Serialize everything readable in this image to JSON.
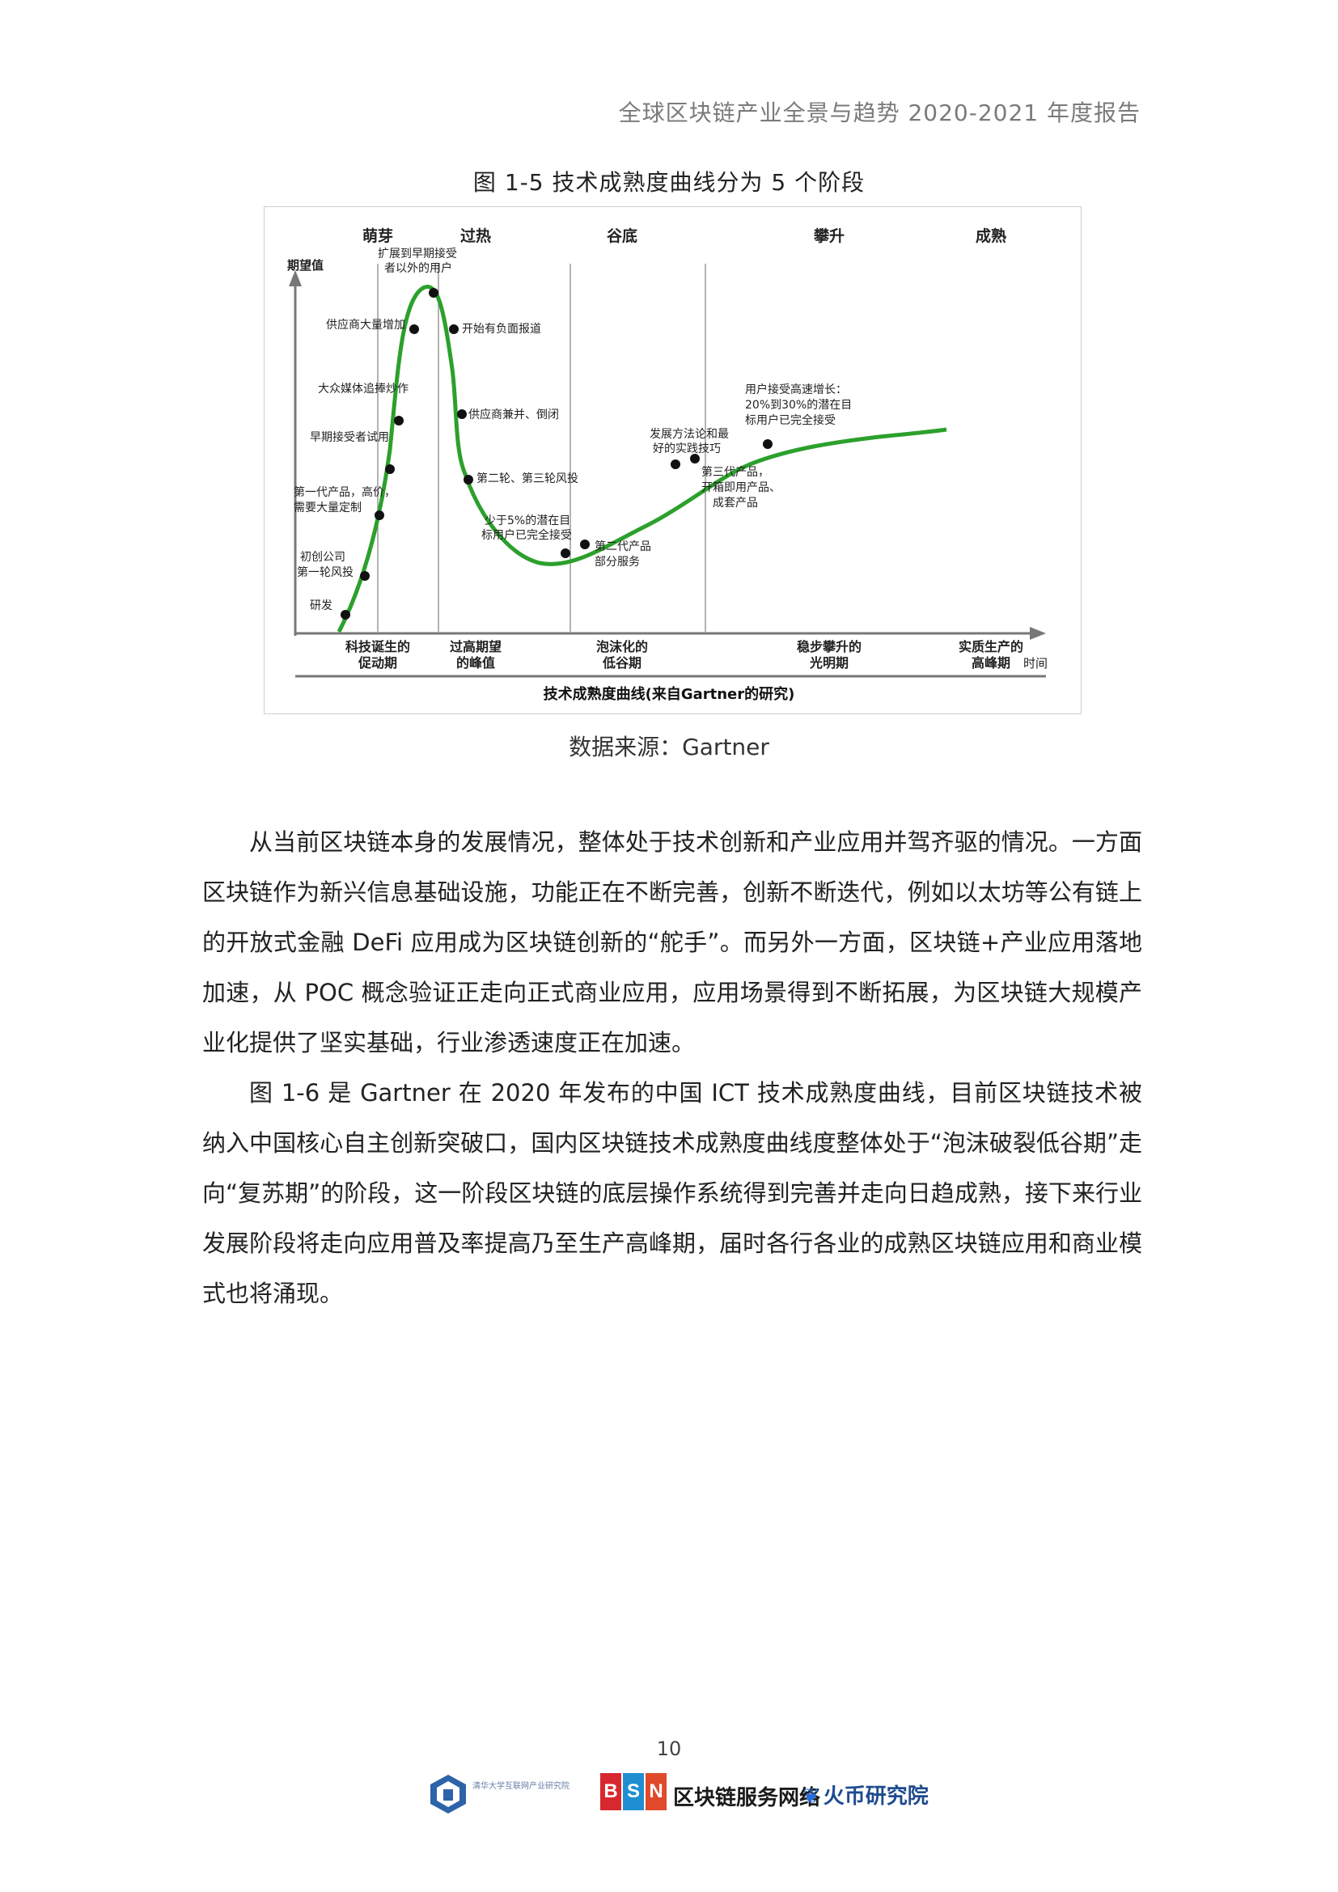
{
  "header": {
    "running_title": "全球区块链产业全景与趋势 2020-2021 年度报告"
  },
  "figure": {
    "caption": "图 1-5  技术成熟度曲线分为 5 个阶段",
    "source": "数据来源：Gartner",
    "y_axis_label": "期望值",
    "x_axis_label": "时间",
    "title_bottom": "技术成熟度曲线(来自Gartner的研究)",
    "phases_top": [
      "萌芽",
      "过热",
      "谷底",
      "攀升",
      "成熟"
    ],
    "phases_bottom": [
      {
        "line1": "科技诞生的",
        "line2": "促动期"
      },
      {
        "line1": "过高期望",
        "line2": "的峰值"
      },
      {
        "line1": "泡沫化的",
        "line2": "低谷期"
      },
      {
        "line1": "稳步攀升的",
        "line2": "光明期"
      },
      {
        "line1": "实质生产的",
        "line2": "高峰期"
      }
    ],
    "annotations": {
      "rd": "研发",
      "startup1": "初创公司",
      "startup2": "第一轮风投",
      "gen1_1": "第一代产品，高价，",
      "gen1_2": "需要大量定制",
      "early_adopters": "早期接受者试用",
      "media": "大众媒体追捧炒作",
      "suppliers": "供应商大量增加",
      "beyond1": "扩展到早期接受",
      "beyond2": "者以外的用户",
      "negative": "开始有负面报道",
      "consolidation": "供应商兼并、倒闭",
      "second_third_vc": "第二轮、第三轮风投",
      "less5_1": "少于5%的潜在目",
      "less5_2": "标用户已完全接受",
      "gen2_1": "第二代产品",
      "gen2_2": "部分服务",
      "methods1": "发展方法论和最",
      "methods2": "好的实践技巧",
      "gen3_1": "第三代产品，",
      "gen3_2": "开箱即用产品、",
      "gen3_3": "成套产品",
      "growth1": "用户接受高速增长：",
      "growth2": "20%到30%的潜在目",
      "growth3": "标用户已完全接受"
    }
  },
  "body": {
    "paragraphs": [
      "从当前区块链本身的发展情况，整体处于技术创新和产业应用并驾齐驱的情况。一方面区块链作为新兴信息基础设施，功能正在不断完善，创新不断迭代，例如以太坊等公有链上的开放式金融 DeFi 应用成为区块链创新的“舵手”。而另外一方面，区块链+产业应用落地加速，从 POC 概念验证正走向正式商业应用，应用场景得到不断拓展，为区块链大规模产业化提供了坚实基础，行业渗透速度正在加速。",
      "图 1-6 是 Gartner 在 2020 年发布的中国 ICT 技术成熟度曲线，目前区块链技术被纳入中国核心自主创新突破口，国内区块链技术成熟度曲线度整体处于“泡沫破裂低谷期”走向“复苏期”的阶段，这一阶段区块链的底层操作系统得到完善并走向日趋成熟，接下来行业发展阶段将走向应用普及率提高乃至生产高峰期，届时各行各业的成熟区块链应用和商业模式也将涌现。"
    ]
  },
  "footer": {
    "page_number": "10",
    "tsinghua_text": "清华大学互联网产业研究院",
    "bsn_letters": [
      "B",
      "S",
      "N"
    ],
    "bsn_label": "区块链服务网络",
    "huobi_label": "火币研究院",
    "colors": {
      "bsn_b": "#d7282f",
      "bsn_s": "#1f8fd1",
      "bsn_n": "#e04a2a",
      "curve": "#2ca02c"
    }
  }
}
